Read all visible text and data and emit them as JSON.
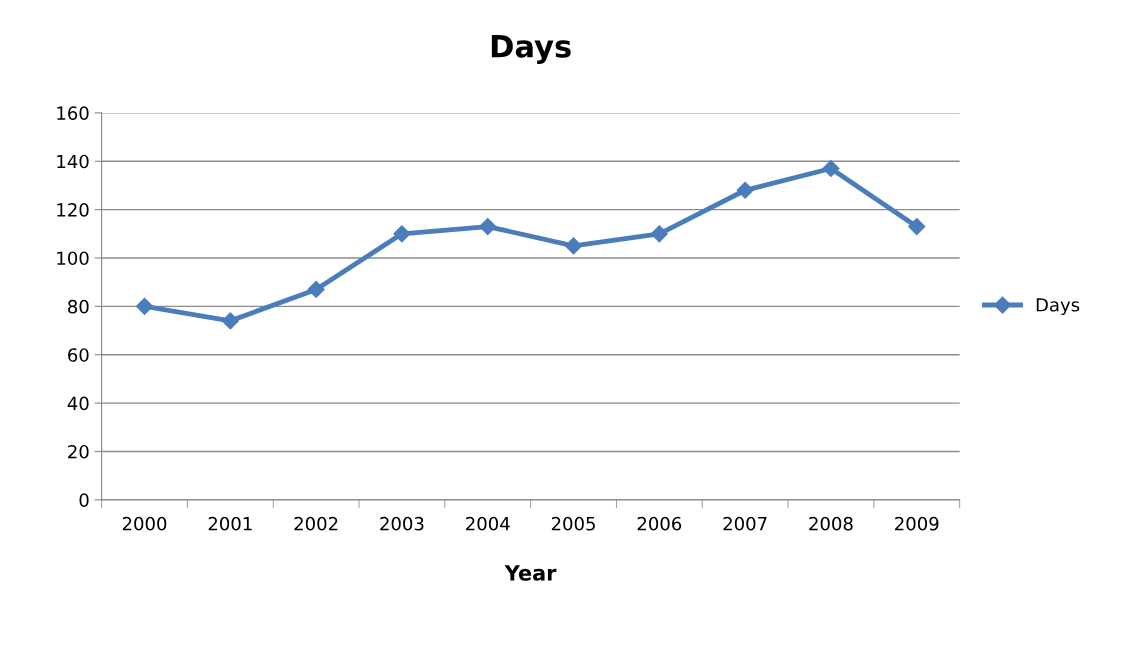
{
  "chart_data": {
    "type": "line",
    "title": "Days",
    "xlabel": "Year",
    "categories": [
      "2000",
      "2001",
      "2002",
      "2003",
      "2004",
      "2005",
      "2006",
      "2007",
      "2008",
      "2009"
    ],
    "series": [
      {
        "name": "Days",
        "color": "#4a7ebb",
        "values": [
          80,
          74,
          87,
          110,
          113,
          105,
          110,
          128,
          137,
          113
        ]
      }
    ],
    "ylim": [
      0,
      160
    ],
    "yticks": [
      0,
      20,
      40,
      60,
      80,
      100,
      120,
      140,
      160
    ],
    "grid": "y",
    "legend": "right",
    "marker": "diamond",
    "line_style": "solid"
  }
}
